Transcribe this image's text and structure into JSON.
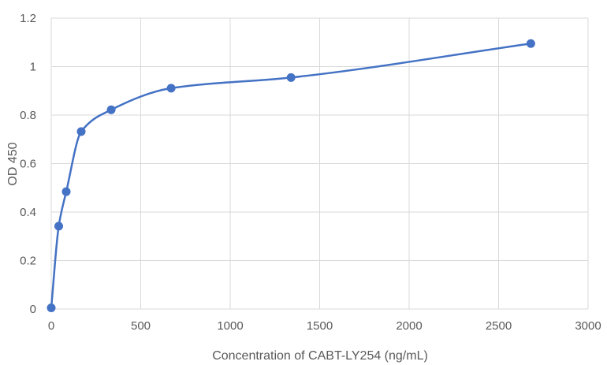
{
  "chart_data": {
    "type": "scatter",
    "title": "",
    "xlabel": "Concentration of CABT-LY254 (ng/mL)",
    "ylabel": "OD 450",
    "xlim": [
      0,
      3000
    ],
    "ylim": [
      0,
      1.2
    ],
    "x_ticks": [
      "0",
      "500",
      "1000",
      "1500",
      "2000",
      "2500",
      "3000"
    ],
    "y_ticks": [
      "0",
      "0.2",
      "0.4",
      "0.6",
      "0.8",
      "1",
      "1.2"
    ],
    "grid": true,
    "line_style": "smooth",
    "series": [
      {
        "color": "#4472c4",
        "x": [
          0,
          41.9,
          83.8,
          167.5,
          335,
          670,
          1340,
          2680
        ],
        "y": [
          0.005,
          0.342,
          0.484,
          0.732,
          0.822,
          0.911,
          0.955,
          1.095
        ]
      }
    ]
  }
}
